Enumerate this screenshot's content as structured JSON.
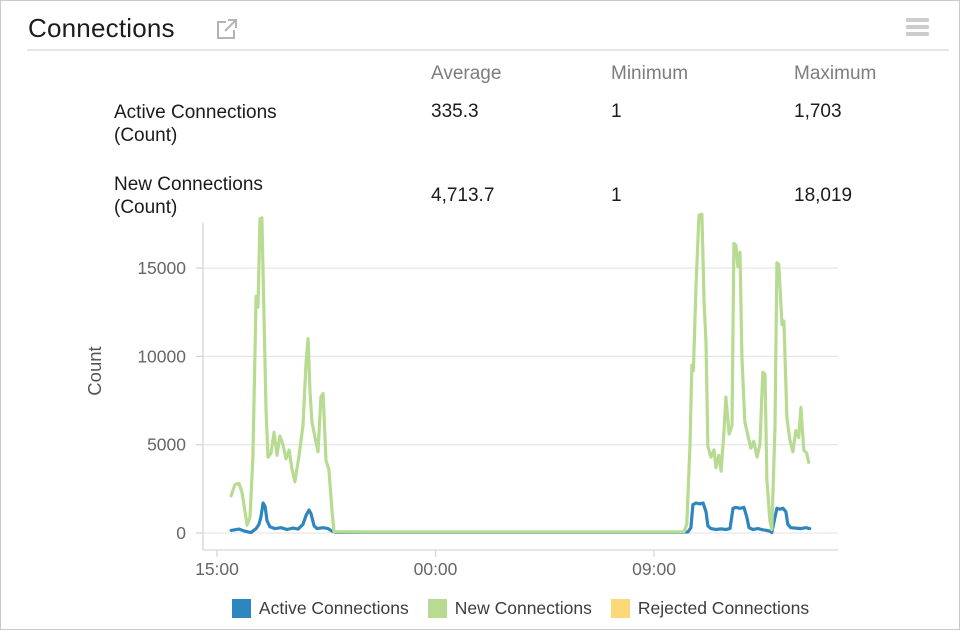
{
  "header": {
    "title": "Connections"
  },
  "stats": {
    "columns": [
      "Average",
      "Minimum",
      "Maximum"
    ],
    "rows": [
      {
        "label": "Active Connections",
        "unit": "(Count)",
        "average": "335.3",
        "minimum": "1",
        "maximum": "1,703"
      },
      {
        "label": "New Connections",
        "unit": "(Count)",
        "average": "4,713.7",
        "minimum": "1",
        "maximum": "18,019"
      }
    ]
  },
  "chart_data": {
    "type": "line",
    "ylabel": "Count",
    "x_ticks": {
      "labels": [
        "15:00",
        "00:00",
        "09:00"
      ],
      "hours": [
        0,
        9,
        18
      ]
    },
    "y_ticks": [
      0,
      5000,
      10000,
      15000
    ],
    "ylim": [
      0,
      18100
    ],
    "xlim_hours": [
      -0.58,
      25.57
    ],
    "grid": true,
    "legend_position": "bottom",
    "series": [
      {
        "name": "Active Connections",
        "color": "#2e86be",
        "points": [
          [
            0.58,
            150
          ],
          [
            0.91,
            220
          ],
          [
            1.11,
            120
          ],
          [
            1.28,
            60
          ],
          [
            1.4,
            30
          ],
          [
            1.61,
            250
          ],
          [
            1.73,
            500
          ],
          [
            1.81,
            900
          ],
          [
            1.9,
            1700
          ],
          [
            1.98,
            1500
          ],
          [
            2.06,
            700
          ],
          [
            2.18,
            350
          ],
          [
            2.39,
            250
          ],
          [
            2.64,
            300
          ],
          [
            2.88,
            200
          ],
          [
            3.13,
            280
          ],
          [
            3.34,
            220
          ],
          [
            3.54,
            500
          ],
          [
            3.67,
            1000
          ],
          [
            3.79,
            1300
          ],
          [
            3.87,
            1100
          ],
          [
            4.0,
            400
          ],
          [
            4.12,
            250
          ],
          [
            4.37,
            300
          ],
          [
            4.57,
            250
          ],
          [
            4.74,
            100
          ],
          [
            4.9,
            40
          ],
          [
            8,
            40
          ],
          [
            13,
            40
          ],
          [
            19.2,
            40
          ],
          [
            19.4,
            60
          ],
          [
            19.52,
            300
          ],
          [
            19.6,
            1600
          ],
          [
            19.73,
            1700
          ],
          [
            19.89,
            1650
          ],
          [
            20.02,
            1700
          ],
          [
            20.14,
            1200
          ],
          [
            20.22,
            400
          ],
          [
            20.34,
            250
          ],
          [
            20.55,
            200
          ],
          [
            20.76,
            230
          ],
          [
            20.96,
            200
          ],
          [
            21.13,
            250
          ],
          [
            21.25,
            1400
          ],
          [
            21.37,
            1450
          ],
          [
            21.54,
            1400
          ],
          [
            21.7,
            1450
          ],
          [
            21.82,
            900
          ],
          [
            21.91,
            300
          ],
          [
            22.07,
            200
          ],
          [
            22.28,
            250
          ],
          [
            22.48,
            180
          ],
          [
            22.65,
            150
          ],
          [
            22.77,
            100
          ],
          [
            22.85,
            30
          ],
          [
            22.98,
            900
          ],
          [
            23.06,
            1400
          ],
          [
            23.18,
            1350
          ],
          [
            23.31,
            1400
          ],
          [
            23.43,
            1200
          ],
          [
            23.51,
            500
          ],
          [
            23.63,
            300
          ],
          [
            23.84,
            280
          ],
          [
            24.05,
            250
          ],
          [
            24.25,
            300
          ],
          [
            24.41,
            250
          ]
        ]
      },
      {
        "name": "New Connections",
        "color": "#b8db92",
        "points": [
          [
            0.58,
            2100
          ],
          [
            0.74,
            2750
          ],
          [
            0.91,
            2800
          ],
          [
            1.03,
            2300
          ],
          [
            1.24,
            450
          ],
          [
            1.36,
            900
          ],
          [
            1.48,
            4300
          ],
          [
            1.61,
            13400
          ],
          [
            1.69,
            12800
          ],
          [
            1.77,
            17800
          ],
          [
            1.85,
            17850
          ],
          [
            1.94,
            12000
          ],
          [
            2.02,
            7000
          ],
          [
            2.1,
            4300
          ],
          [
            2.22,
            4500
          ],
          [
            2.35,
            5700
          ],
          [
            2.47,
            4400
          ],
          [
            2.59,
            5500
          ],
          [
            2.72,
            5000
          ],
          [
            2.84,
            4200
          ],
          [
            2.97,
            4700
          ],
          [
            3.09,
            3600
          ],
          [
            3.21,
            2900
          ],
          [
            3.38,
            4400
          ],
          [
            3.54,
            6100
          ],
          [
            3.67,
            9700
          ],
          [
            3.75,
            11000
          ],
          [
            3.83,
            8000
          ],
          [
            3.91,
            6300
          ],
          [
            4.04,
            5400
          ],
          [
            4.16,
            4600
          ],
          [
            4.28,
            7700
          ],
          [
            4.37,
            7900
          ],
          [
            4.49,
            4100
          ],
          [
            4.61,
            3600
          ],
          [
            4.74,
            1200
          ],
          [
            4.82,
            80
          ],
          [
            6,
            60
          ],
          [
            10,
            60
          ],
          [
            14,
            60
          ],
          [
            19.23,
            60
          ],
          [
            19.35,
            500
          ],
          [
            19.48,
            5000
          ],
          [
            19.56,
            9500
          ],
          [
            19.62,
            9200
          ],
          [
            19.73,
            14000
          ],
          [
            19.85,
            18000
          ],
          [
            19.97,
            18050
          ],
          [
            20.06,
            13000
          ],
          [
            20.14,
            10800
          ],
          [
            20.22,
            4900
          ],
          [
            20.34,
            4300
          ],
          [
            20.47,
            4700
          ],
          [
            20.55,
            3700
          ],
          [
            20.67,
            4400
          ],
          [
            20.76,
            3500
          ],
          [
            20.88,
            5800
          ],
          [
            20.96,
            7700
          ],
          [
            21.09,
            5600
          ],
          [
            21.21,
            6100
          ],
          [
            21.29,
            16400
          ],
          [
            21.37,
            16300
          ],
          [
            21.45,
            15100
          ],
          [
            21.54,
            15900
          ],
          [
            21.62,
            10000
          ],
          [
            21.74,
            6300
          ],
          [
            21.87,
            5500
          ],
          [
            21.99,
            4800
          ],
          [
            22.11,
            5200
          ],
          [
            22.24,
            4300
          ],
          [
            22.36,
            5000
          ],
          [
            22.48,
            9100
          ],
          [
            22.57,
            9000
          ],
          [
            22.65,
            3000
          ],
          [
            22.77,
            700
          ],
          [
            22.85,
            200
          ],
          [
            22.98,
            6000
          ],
          [
            23.06,
            15300
          ],
          [
            23.14,
            15200
          ],
          [
            23.27,
            11800
          ],
          [
            23.35,
            12000
          ],
          [
            23.47,
            6500
          ],
          [
            23.59,
            5300
          ],
          [
            23.72,
            4600
          ],
          [
            23.84,
            5800
          ],
          [
            23.96,
            5400
          ],
          [
            24.05,
            7100
          ],
          [
            24.17,
            4700
          ],
          [
            24.29,
            4500
          ],
          [
            24.37,
            4000
          ]
        ]
      },
      {
        "name": "Rejected Connections",
        "color": "#fbd978",
        "points": []
      }
    ]
  }
}
